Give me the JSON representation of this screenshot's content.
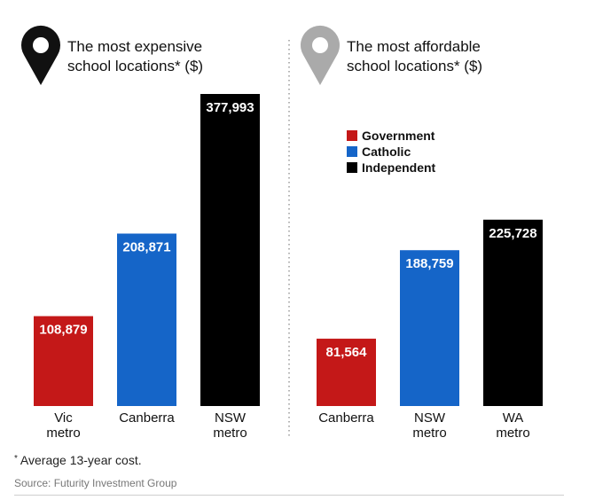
{
  "chart_data": [
    {
      "type": "bar",
      "title_lines": [
        "The most expensive",
        "school locations* ($)"
      ],
      "categories": [
        [
          "Vic",
          "metro"
        ],
        [
          "Canberra"
        ],
        [
          "NSW",
          "metro"
        ]
      ],
      "values": [
        108879,
        208871,
        377993
      ],
      "value_labels": [
        "108,879",
        "208,871",
        "377,993"
      ],
      "bar_types": [
        "Government",
        "Catholic",
        "Independent"
      ],
      "pin_color": "#111111"
    },
    {
      "type": "bar",
      "title_lines": [
        "The most affordable",
        "school locations* ($)"
      ],
      "categories": [
        [
          "Canberra"
        ],
        [
          "NSW",
          "metro"
        ],
        [
          "WA",
          "metro"
        ]
      ],
      "values": [
        81564,
        188759,
        225728
      ],
      "value_labels": [
        "81,564",
        "188,759",
        "225,728"
      ],
      "bar_types": [
        "Government",
        "Catholic",
        "Independent"
      ],
      "pin_color": "#aaaaaa"
    }
  ],
  "legend": [
    {
      "label": "Government",
      "color": "#c41818"
    },
    {
      "label": "Catholic",
      "color": "#1565c8"
    },
    {
      "label": "Independent",
      "color": "#000000"
    }
  ],
  "footnote": {
    "star": "*",
    "text": "Average 13-year cost."
  },
  "source": "Source: Futurity Investment Group"
}
